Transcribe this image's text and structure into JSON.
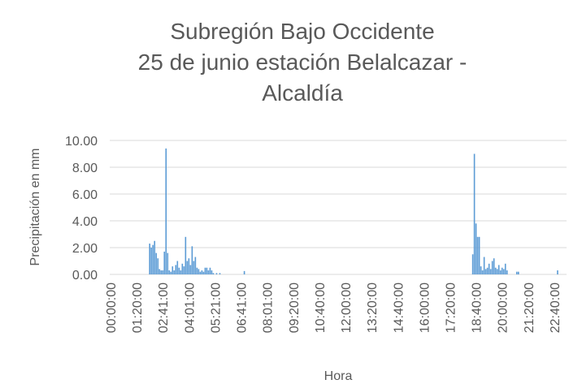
{
  "chart_data": {
    "type": "bar",
    "title": [
      "Subregión Bajo Occidente",
      "25 de junio estación Belalcazar -",
      "Alcaldía"
    ],
    "x_label": "Hora",
    "y_label": "Precipitación en mm",
    "color": "#5b9bd5",
    "grid": true,
    "ylim": [
      0,
      10
    ],
    "yticks": [
      {
        "value": 0,
        "label": "0.00"
      },
      {
        "value": 2,
        "label": "2.00"
      },
      {
        "value": 4,
        "label": "4.00"
      },
      {
        "value": 6,
        "label": "6.00"
      },
      {
        "value": 8,
        "label": "8.00"
      },
      {
        "value": 10,
        "label": "10.00"
      }
    ],
    "categories": [
      "00:00:00",
      null,
      null,
      null,
      null,
      null,
      null,
      null,
      null,
      null,
      null,
      null,
      null,
      null,
      null,
      null,
      "01:20:00",
      null,
      null,
      null,
      null,
      null,
      null,
      null,
      null,
      null,
      null,
      null,
      null,
      null,
      null,
      null,
      "02:41:00",
      null,
      null,
      null,
      null,
      null,
      null,
      null,
      null,
      null,
      null,
      null,
      null,
      null,
      null,
      null,
      "04:01:00",
      null,
      null,
      null,
      null,
      null,
      null,
      null,
      null,
      null,
      null,
      null,
      null,
      null,
      null,
      null,
      "05:21:00",
      null,
      null,
      null,
      null,
      null,
      null,
      null,
      null,
      null,
      null,
      null,
      null,
      null,
      null,
      null,
      "06:41:00",
      null,
      null,
      null,
      null,
      null,
      null,
      null,
      null,
      null,
      null,
      null,
      null,
      null,
      null,
      null,
      "08:01:00",
      null,
      null,
      null,
      null,
      null,
      null,
      null,
      null,
      null,
      null,
      null,
      null,
      null,
      null,
      null,
      "09:20:00",
      null,
      null,
      null,
      null,
      null,
      null,
      null,
      null,
      null,
      null,
      null,
      null,
      null,
      null,
      null,
      "10:40:00",
      null,
      null,
      null,
      null,
      null,
      null,
      null,
      null,
      null,
      null,
      null,
      null,
      null,
      null,
      null,
      "12:00:00",
      null,
      null,
      null,
      null,
      null,
      null,
      null,
      null,
      null,
      null,
      null,
      null,
      null,
      null,
      null,
      "13:20:00",
      null,
      null,
      null,
      null,
      null,
      null,
      null,
      null,
      null,
      null,
      null,
      null,
      null,
      null,
      null,
      "14:40:00",
      null,
      null,
      null,
      null,
      null,
      null,
      null,
      null,
      null,
      null,
      null,
      null,
      null,
      null,
      null,
      "16:00:00",
      null,
      null,
      null,
      null,
      null,
      null,
      null,
      null,
      null,
      null,
      null,
      null,
      null,
      null,
      null,
      "17:20:00",
      null,
      null,
      null,
      null,
      null,
      null,
      null,
      null,
      null,
      null,
      null,
      null,
      null,
      null,
      null,
      "18:40:00",
      null,
      null,
      null,
      null,
      null,
      null,
      null,
      null,
      null,
      null,
      null,
      null,
      null,
      null,
      null,
      "20:00:00",
      null,
      null,
      null,
      null,
      null,
      null,
      null,
      null,
      null,
      null,
      null,
      null,
      null,
      null,
      null,
      "21:20:00",
      null,
      null,
      null,
      null,
      null,
      null,
      null,
      null,
      null,
      null,
      null,
      null,
      null,
      null,
      null,
      "22:40:00",
      null,
      null,
      null,
      null,
      null,
      null,
      null
    ],
    "values": [
      0,
      0,
      0,
      0,
      0,
      0,
      0,
      0,
      0,
      0,
      0,
      0,
      0,
      0,
      0,
      0,
      0,
      0,
      0,
      0,
      0,
      0,
      0,
      0,
      2.3,
      2.0,
      2.2,
      2.5,
      1.6,
      1.2,
      0.4,
      0.3,
      0.3,
      1.7,
      9.4,
      1.6,
      0.3,
      0.2,
      0.6,
      0.3,
      0.7,
      1.0,
      0.5,
      0.3,
      0.8,
      0.6,
      2.8,
      1.0,
      1.2,
      0.7,
      2.1,
      1.0,
      1.3,
      0.5,
      0.4,
      0.2,
      0.3,
      0.2,
      0.5,
      0.5,
      0.3,
      0.5,
      0.3,
      0.1,
      0,
      0.1,
      0,
      0.1,
      0,
      0,
      0,
      0,
      0,
      0,
      0,
      0,
      0,
      0,
      0,
      0,
      0,
      0,
      0.25,
      0,
      0,
      0,
      0,
      0,
      0,
      0,
      0,
      0,
      0,
      0,
      0,
      0,
      0,
      0,
      0,
      0,
      0,
      0,
      0,
      0,
      0,
      0,
      0,
      0,
      0,
      0,
      0,
      0,
      0,
      0,
      0,
      0,
      0,
      0,
      0,
      0,
      0,
      0,
      0,
      0,
      0,
      0,
      0,
      0,
      0,
      0,
      0,
      0,
      0,
      0,
      0,
      0,
      0,
      0,
      0,
      0,
      0,
      0,
      0,
      0,
      0,
      0,
      0,
      0,
      0,
      0,
      0,
      0,
      0,
      0,
      0,
      0,
      0,
      0,
      0,
      0,
      0,
      0,
      0,
      0,
      0,
      0,
      0,
      0,
      0,
      0,
      0,
      0,
      0,
      0,
      0,
      0,
      0,
      0,
      0,
      0,
      0,
      0,
      0,
      0,
      0,
      0,
      0,
      0,
      0,
      0,
      0,
      0,
      0,
      0,
      0,
      0,
      0,
      0,
      0,
      0,
      0,
      0,
      0,
      0,
      0,
      0,
      0,
      0,
      0,
      0,
      0,
      0,
      0,
      0,
      0,
      0,
      0,
      0,
      0,
      0,
      0,
      0,
      1.5,
      9.0,
      3.8,
      2.8,
      2.8,
      0.6,
      0.3,
      1.3,
      0.4,
      0.5,
      0.8,
      0.4,
      1.0,
      1.2,
      0.5,
      0.4,
      0.7,
      0.3,
      0.5,
      0.4,
      0.8,
      0.3,
      0,
      0,
      0,
      0,
      0,
      0.2,
      0.2,
      0,
      0,
      0,
      0,
      0,
      0,
      0,
      0,
      0,
      0,
      0,
      0,
      0,
      0,
      0,
      0,
      0,
      0,
      0,
      0,
      0,
      0,
      0,
      0.3,
      0,
      0,
      0,
      0,
      0
    ]
  }
}
